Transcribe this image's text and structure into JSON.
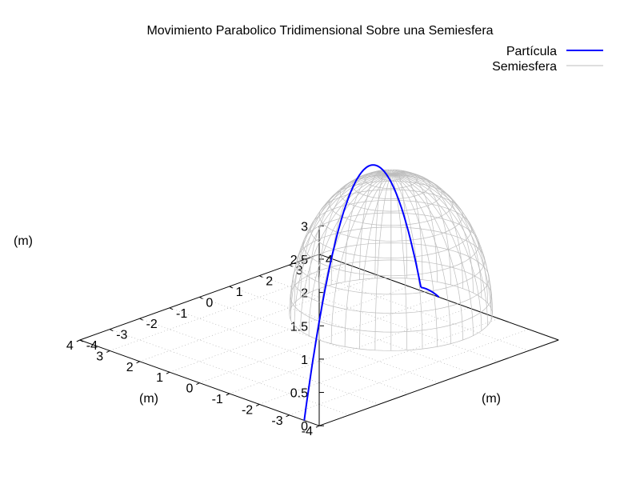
{
  "chart_data": {
    "type": "line",
    "title": "Movimiento Parabolico Tridimensional Sobre una Semiesfera",
    "xlabel": "(m)",
    "ylabel": "(m)",
    "zlabel": "(m)",
    "xlim": [
      -4,
      4
    ],
    "ylim": [
      -4,
      4
    ],
    "zlim": [
      0,
      3
    ],
    "x_ticks": [
      "-4",
      "-3",
      "-2",
      "-1",
      "0",
      "1",
      "2",
      "3",
      "4"
    ],
    "y_ticks": [
      "-4",
      "-3",
      "-2",
      "-1",
      "0",
      "1",
      "2",
      "3",
      "4"
    ],
    "z_ticks": [
      "0",
      "0.5",
      "1",
      "1.5",
      "2",
      "2.5",
      "3"
    ],
    "grid": true,
    "legend_position": "top-right",
    "series": [
      {
        "name": "Partícula",
        "color": "#0000ff",
        "style": "line",
        "x0": -3.5,
        "y0": -4.0,
        "z0": 0.0,
        "x1": -0.8,
        "y1": 2.6,
        "z1": 0.5,
        "zmax": 3.0,
        "rebound_end": {
          "x": 0.0,
          "y": 4.0,
          "z": 0.0
        }
      },
      {
        "name": "Semiesfera",
        "color": "#bdbdbd",
        "style": "wireframe",
        "center": {
          "x": 0.0,
          "y": 2.4,
          "z": 0.0
        },
        "radius": 2.4,
        "height": 2.1
      }
    ]
  }
}
